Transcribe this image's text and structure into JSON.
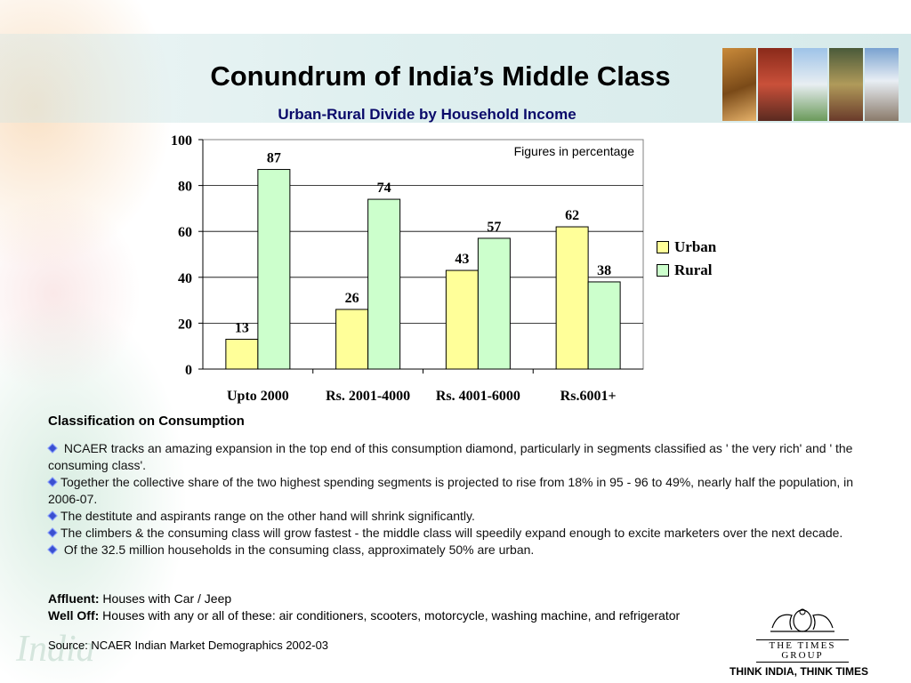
{
  "title": "Conundrum of India’s Middle Class",
  "subtitle": "Urban-Rural Divide by Household Income",
  "chart_data": {
    "type": "bar",
    "categories": [
      "Upto 2000",
      "Rs. 2001-4000",
      "Rs. 4001-6000",
      "Rs.6001+"
    ],
    "series": [
      {
        "name": "Urban",
        "values": [
          13,
          26,
          43,
          62
        ],
        "color": "#ffff99"
      },
      {
        "name": "Rural",
        "values": [
          87,
          74,
          57,
          38
        ],
        "color": "#ccffcc"
      }
    ],
    "ylim": [
      0,
      100
    ],
    "yticks": [
      "0",
      "20",
      "40",
      "60",
      "80",
      "100"
    ],
    "annotation": "Figures in percentage",
    "legend_position": "right",
    "grid": true
  },
  "section_title": "Classification on Consumption",
  "bullets": [
    " NCAER tracks an amazing expansion in the top end of this consumption diamond, particularly in segments classified as ' the very rich' and ' the consuming class'.",
    "Together the collective share of the two highest spending segments is projected to rise from 18% in 95 - 96 to 49%, nearly half the population, in 2006-07.",
    "The destitute and aspirants range on the other hand will shrink significantly.",
    "The climbers & the consuming class will grow fastest - the middle class will speedily expand enough to excite marketers over the next decade.",
    " Of the 32.5 million households in the consuming class, approximately 50% are urban."
  ],
  "definitions": {
    "affluent_label": "Affluent:",
    "affluent_text": " Houses with Car / Jeep",
    "welloff_label": "Well Off:",
    "welloff_text": " Houses with any or all of these: air conditioners, scooters, motorcycle, washing machine, and refrigerator"
  },
  "source": "Source: NCAER Indian Market Demographics 2002-03",
  "logo": {
    "name": "THE TIMES GROUP"
  },
  "tagline": "THINK INDIA, THINK TIMES",
  "watermark": "India"
}
